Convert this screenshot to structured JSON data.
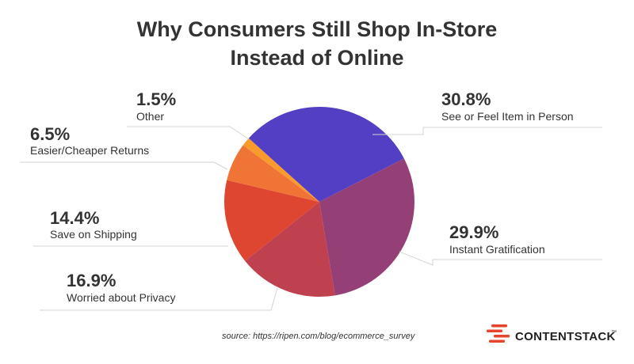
{
  "chart_data": {
    "type": "pie",
    "title": [
      "Why Consumers Still Shop In-Store",
      "Instead of Online"
    ],
    "unit": "%",
    "slices": [
      {
        "label": "See or Feel Item in Person",
        "value": 30.8,
        "display": "30.8%",
        "color": "#523fc4"
      },
      {
        "label": "Instant Gratification",
        "value": 29.9,
        "display": "29.9%",
        "color": "#953f77"
      },
      {
        "label": "Worried about Privacy",
        "value": 16.9,
        "display": "16.9%",
        "color": "#bf404f"
      },
      {
        "label": "Save on Shipping",
        "value": 14.4,
        "display": "14.4%",
        "color": "#df4631"
      },
      {
        "label": "Easier/Cheaper Returns",
        "value": 6.5,
        "display": "6.5%",
        "color": "#ef7436"
      },
      {
        "label": "Other",
        "value": 1.5,
        "display": "1.5%",
        "color": "#f89a2c"
      }
    ]
  },
  "footer": {
    "source": "source: https://ripen.com/blog/ecommerce_survey",
    "brand": "CONTENTSTACK",
    "brand_tm": "™",
    "brand_color": "#e8432d",
    "logo_icon": "contentstack-logo-icon"
  }
}
